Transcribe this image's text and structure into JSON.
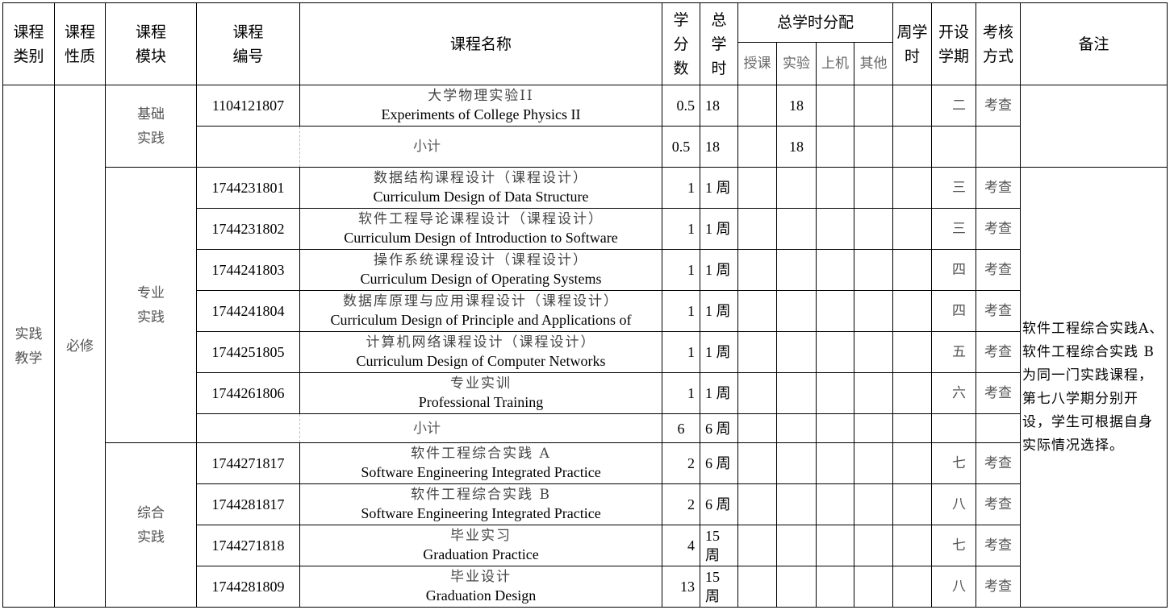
{
  "header": {
    "category": "课程\n类别",
    "nature": "课程\n性质",
    "module": "课程\n模块",
    "code": "课程\n编号",
    "name": "课程名称",
    "credits": "学\n分\n数",
    "total_hours": "总\n学\n时",
    "distribution": "总学时分配",
    "lecture": "授课",
    "lab": "实验",
    "computer": "上机",
    "other": "其他",
    "weekly_hours": "周学\n时",
    "semester": "开设\n学期",
    "assessment": "考核\n方式",
    "remarks": "备注"
  },
  "category": "实践\n教学",
  "nature": "必修",
  "subtotal_label": "小计",
  "remarks_text": "软件工程综合实践A、软件工程综合实践 B 为同一门实践课程，第七八学期分别开设，学生可根据自身实际情况选择。",
  "modules": [
    {
      "name": "基础\n实践",
      "courses": [
        {
          "code": "1104121807",
          "name_cn": "大学物理实验II",
          "name_en": "Experiments of College Physics II",
          "credits": "0.5",
          "hours": "18",
          "lab": "18",
          "semester": "二",
          "assessment": "考查"
        }
      ],
      "subtotal": {
        "credits": "0.5",
        "hours": "18",
        "lab": "18"
      }
    },
    {
      "name": "专业\n实践",
      "courses": [
        {
          "code": "1744231801",
          "name_cn": "数据结构课程设计（课程设计）",
          "name_en": "Curriculum Design of Data Structure",
          "credits": "1",
          "hours": "1 周",
          "lab": "",
          "semester": "三",
          "assessment": "考查"
        },
        {
          "code": "1744231802",
          "name_cn": "软件工程导论课程设计（课程设计）",
          "name_en": "Curriculum Design of Introduction to Software",
          "credits": "1",
          "hours": "1 周",
          "lab": "",
          "semester": "三",
          "assessment": "考查"
        },
        {
          "code": "1744241803",
          "name_cn": "操作系统课程设计（课程设计）",
          "name_en": "Curriculum Design of Operating Systems",
          "credits": "1",
          "hours": "1 周",
          "lab": "",
          "semester": "四",
          "assessment": "考查"
        },
        {
          "code": "1744241804",
          "name_cn": "数据库原理与应用课程设计（课程设计）",
          "name_en": "Curriculum Design of Principle and Applications of",
          "credits": "1",
          "hours": "1 周",
          "lab": "",
          "semester": "四",
          "assessment": "考查"
        },
        {
          "code": "1744251805",
          "name_cn": "计算机网络课程设计（课程设计）",
          "name_en": "Curriculum Design of Computer Networks",
          "credits": "1",
          "hours": "1 周",
          "lab": "",
          "semester": "五",
          "assessment": "考查"
        },
        {
          "code": "1744261806",
          "name_cn": "专业实训",
          "name_en": "Professional Training",
          "credits": "1",
          "hours": "1 周",
          "lab": "",
          "semester": "六",
          "assessment": "考查"
        }
      ],
      "subtotal": {
        "credits": "6",
        "hours": "6 周",
        "lab": ""
      }
    },
    {
      "name": "综合\n实践",
      "courses": [
        {
          "code": "1744271817",
          "name_cn": "软件工程综合实践 A",
          "name_en": "Software Engineering Integrated Practice",
          "credits": "2",
          "hours": "6 周",
          "lab": "",
          "semester": "七",
          "assessment": "考查"
        },
        {
          "code": "1744281817",
          "name_cn": "软件工程综合实践 B",
          "name_en": "Software Engineering Integrated Practice",
          "credits": "2",
          "hours": "6 周",
          "lab": "",
          "semester": "八",
          "assessment": "考查"
        },
        {
          "code": "1744271818",
          "name_cn": "毕业实习",
          "name_en": "Graduation Practice",
          "credits": "4",
          "hours": "15 周",
          "lab": "",
          "semester": "七",
          "assessment": "考查"
        },
        {
          "code": "1744281809",
          "name_cn": "毕业设计",
          "name_en": "Graduation Design",
          "credits": "13",
          "hours": "15 周",
          "lab": "",
          "semester": "八",
          "assessment": "考查"
        }
      ]
    }
  ]
}
